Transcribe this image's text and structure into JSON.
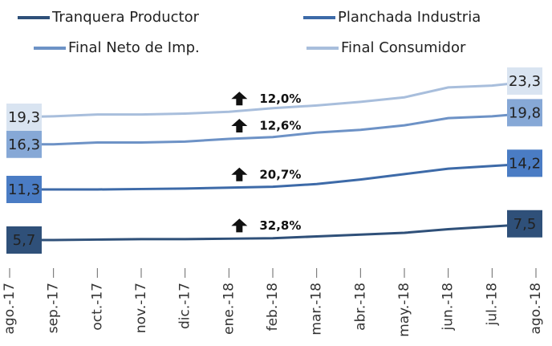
{
  "chart_data": {
    "type": "line",
    "categories": [
      "ago.-17",
      "sep.-17",
      "oct.-17",
      "nov.-17",
      "dic.-17",
      "ene.-18",
      "feb.-18",
      "mar.-18",
      "abr.-18",
      "may.-18",
      "jun.-18",
      "jul.-18",
      "ago.-18"
    ],
    "series": [
      {
        "name": "Tranquera Productor",
        "color": "#2f5079",
        "box": "#2f5079",
        "values": [
          5.7,
          5.7,
          5.75,
          5.8,
          5.8,
          5.85,
          5.9,
          6.1,
          6.3,
          6.5,
          6.9,
          7.2,
          7.5
        ],
        "value_labels": [
          "5,7",
          null,
          null,
          null,
          null,
          null,
          null,
          null,
          null,
          null,
          null,
          null,
          "7,5"
        ],
        "annotation": "32,8%"
      },
      {
        "name": "Planchada Industria",
        "color": "#3d6aa8",
        "box": "#4a7cc4",
        "values": [
          11.3,
          11.3,
          11.3,
          11.35,
          11.4,
          11.5,
          11.6,
          11.9,
          12.4,
          13.0,
          13.6,
          13.9,
          14.2
        ],
        "value_labels": [
          "11,3",
          null,
          null,
          null,
          null,
          null,
          null,
          null,
          null,
          null,
          null,
          null,
          "14,2"
        ],
        "annotation": "20,7%"
      },
      {
        "name": "Final Neto de Imp.",
        "color": "#6d92c6",
        "box": "#86a8d6",
        "values": [
          16.3,
          16.3,
          16.5,
          16.5,
          16.6,
          16.9,
          17.1,
          17.6,
          17.9,
          18.4,
          19.2,
          19.4,
          19.8
        ],
        "value_labels": [
          "16,3",
          null,
          null,
          null,
          null,
          null,
          null,
          null,
          null,
          null,
          null,
          null,
          "19,8"
        ],
        "annotation": "12,6%"
      },
      {
        "name": "Final Consumidor",
        "color": "#a8bedc",
        "box": "#d9e4f1",
        "values": [
          19.3,
          19.4,
          19.6,
          19.6,
          19.7,
          19.9,
          20.3,
          20.6,
          21.0,
          21.5,
          22.6,
          22.8,
          23.3
        ],
        "value_labels": [
          "19,3",
          null,
          null,
          null,
          null,
          null,
          null,
          null,
          null,
          null,
          null,
          null,
          "23,3"
        ],
        "annotation": "12,0%"
      }
    ]
  }
}
